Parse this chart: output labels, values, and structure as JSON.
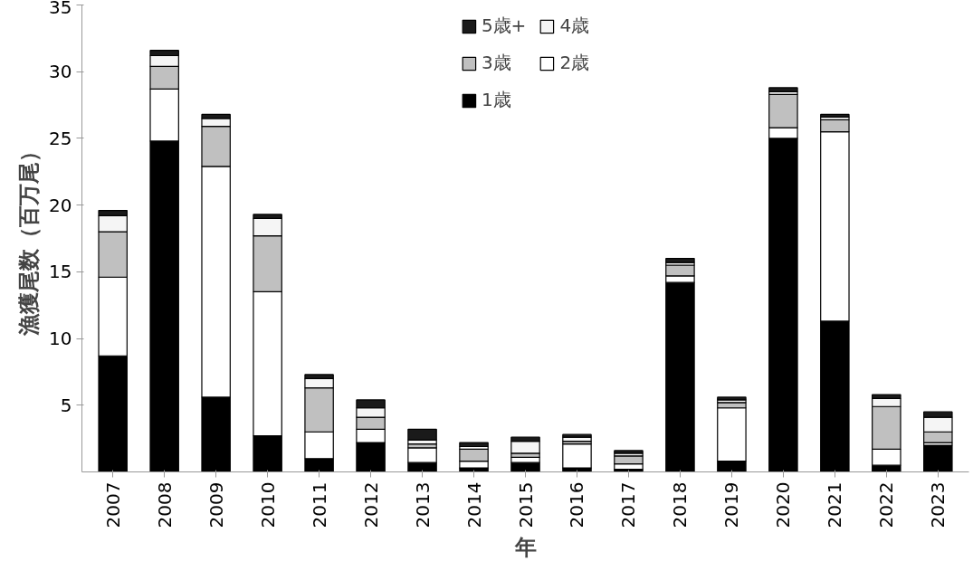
{
  "chart_data": {
    "type": "bar",
    "stacked": true,
    "xlabel": "年",
    "ylabel": "漁獲尾数（百万尾）",
    "categories": [
      "2007",
      "2008",
      "2009",
      "2010",
      "2011",
      "2012",
      "2013",
      "2014",
      "2015",
      "2016",
      "2017",
      "2018",
      "2019",
      "2020",
      "2021",
      "2022",
      "2023"
    ],
    "series": [
      {
        "name": "1歳",
        "color": "#000000",
        "values": [
          8.7,
          24.8,
          5.6,
          2.7,
          1.0,
          2.2,
          0.7,
          0.3,
          0.7,
          0.3,
          0.2,
          14.2,
          0.8,
          25.0,
          11.3,
          0.5,
          2.0
        ]
      },
      {
        "name": "2歳",
        "color": "#ffffff",
        "values": [
          5.9,
          3.9,
          17.3,
          10.8,
          2.0,
          1.0,
          1.1,
          0.5,
          0.4,
          1.8,
          0.4,
          0.5,
          4.0,
          0.8,
          14.2,
          1.2,
          0.2
        ]
      },
      {
        "name": "3歳",
        "color": "#c0c0c0",
        "values": [
          3.4,
          1.7,
          3.0,
          4.2,
          3.3,
          0.9,
          0.3,
          0.9,
          0.3,
          0.2,
          0.6,
          0.8,
          0.4,
          2.5,
          0.9,
          3.2,
          0.8
        ]
      },
      {
        "name": "4歳",
        "color": "#f5f5f5",
        "values": [
          1.2,
          0.8,
          0.6,
          1.3,
          0.7,
          0.7,
          0.3,
          0.2,
          0.9,
          0.3,
          0.2,
          0.2,
          0.2,
          0.2,
          0.2,
          0.6,
          1.1
        ]
      },
      {
        "name": "5歳+",
        "color": "#1a1a1a",
        "values": [
          0.4,
          0.4,
          0.3,
          0.3,
          0.3,
          0.6,
          0.8,
          0.3,
          0.3,
          0.2,
          0.2,
          0.3,
          0.2,
          0.3,
          0.2,
          0.3,
          0.4
        ]
      }
    ],
    "ylim": [
      0,
      35
    ],
    "yticks": [
      5,
      10,
      15,
      20,
      25,
      30,
      35
    ],
    "grid": false,
    "legend": "top"
  }
}
